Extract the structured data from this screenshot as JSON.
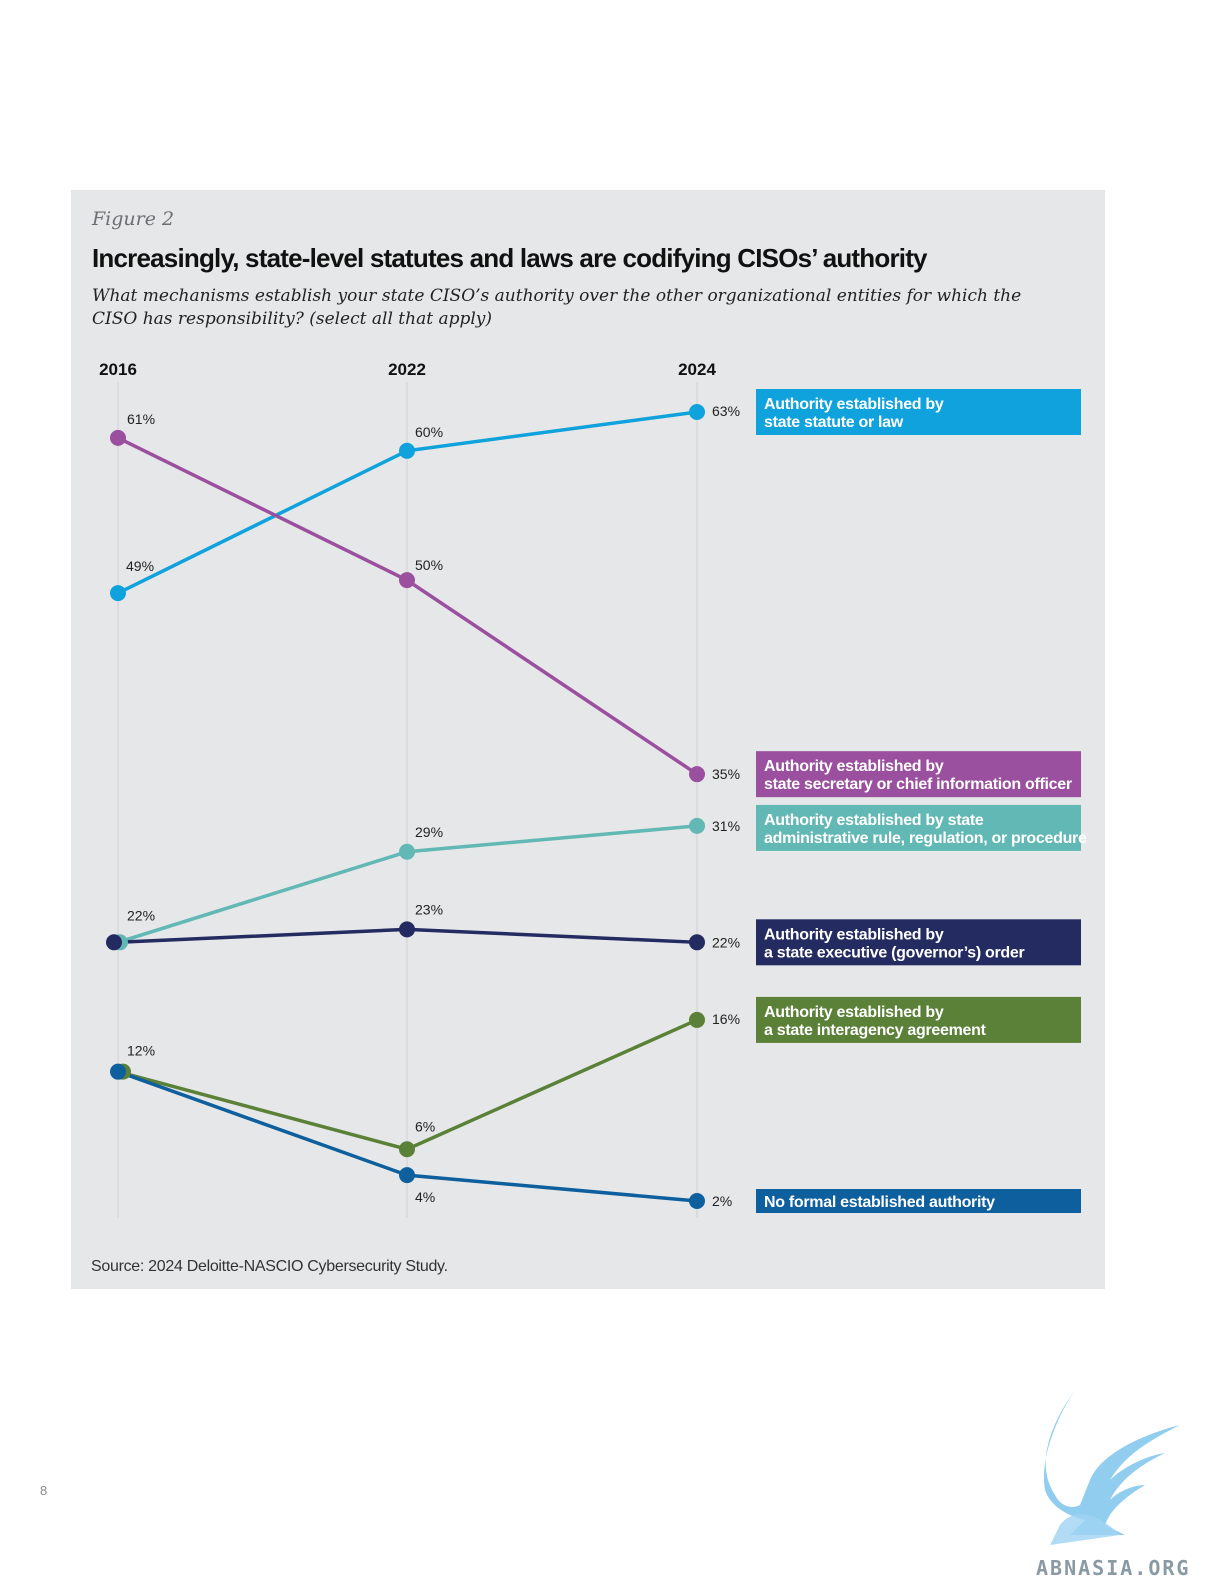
{
  "figure_label": "Figure 2",
  "title": "Increasingly, state-level statutes and laws are codifying CISOs’ authority",
  "subtitle": "What mechanisms establish your state CISO’s authority over the other organizational entities for which the CISO has responsibility? (select all that apply)",
  "source": "Source: 2024 Deloitte-NASCIO Cybersecurity Study.",
  "page_number": "8",
  "watermark": "ABNASIA.ORG",
  "chart_data": {
    "type": "line",
    "x": [
      "2016",
      "2022",
      "2024"
    ],
    "y_unit": "%",
    "grid": false,
    "legend": "right",
    "series": [
      {
        "name": "Authority established by state statute or law",
        "label_lines": [
          "Authority established by",
          "state statute or law"
        ],
        "color": "#0fa2dd",
        "values": [
          49,
          60,
          63
        ],
        "value_labels": [
          "49%",
          "60%",
          "63%"
        ]
      },
      {
        "name": "Authority established by state secretary or chief information officer",
        "label_lines": [
          "Authority established by",
          "state secretary or chief information officer"
        ],
        "color": "#9b4f9f",
        "values": [
          61,
          50,
          35
        ],
        "value_labels": [
          "61%",
          "50%",
          "35%"
        ]
      },
      {
        "name": "Authority established by state administrative rule, regulation, or procedure",
        "label_lines": [
          "Authority established by state",
          "administrative rule, regulation, or procedure"
        ],
        "color": "#62b8b4",
        "values": [
          22,
          29,
          31
        ],
        "value_labels": [
          "22%",
          "29%",
          "31%"
        ]
      },
      {
        "name": "Authority established by a state executive (governor’s) order",
        "label_lines": [
          "Authority established by",
          "a state executive (governor’s) order"
        ],
        "color": "#232b61",
        "values": [
          22,
          23,
          22
        ],
        "value_labels": [
          "",
          "23%",
          "22%"
        ]
      },
      {
        "name": "Authority established by a state interagency agreement",
        "label_lines": [
          "Authority established by",
          "a state interagency agreement"
        ],
        "color": "#5a8137",
        "values": [
          12,
          6,
          16
        ],
        "value_labels": [
          "12%",
          "6%",
          "16%"
        ]
      },
      {
        "name": "No formal established authority",
        "label_lines": [
          "No formal established authority"
        ],
        "color": "#0e5f9e",
        "values": [
          12,
          4,
          2
        ],
        "value_labels": [
          "",
          "4%",
          "2%"
        ]
      }
    ]
  }
}
